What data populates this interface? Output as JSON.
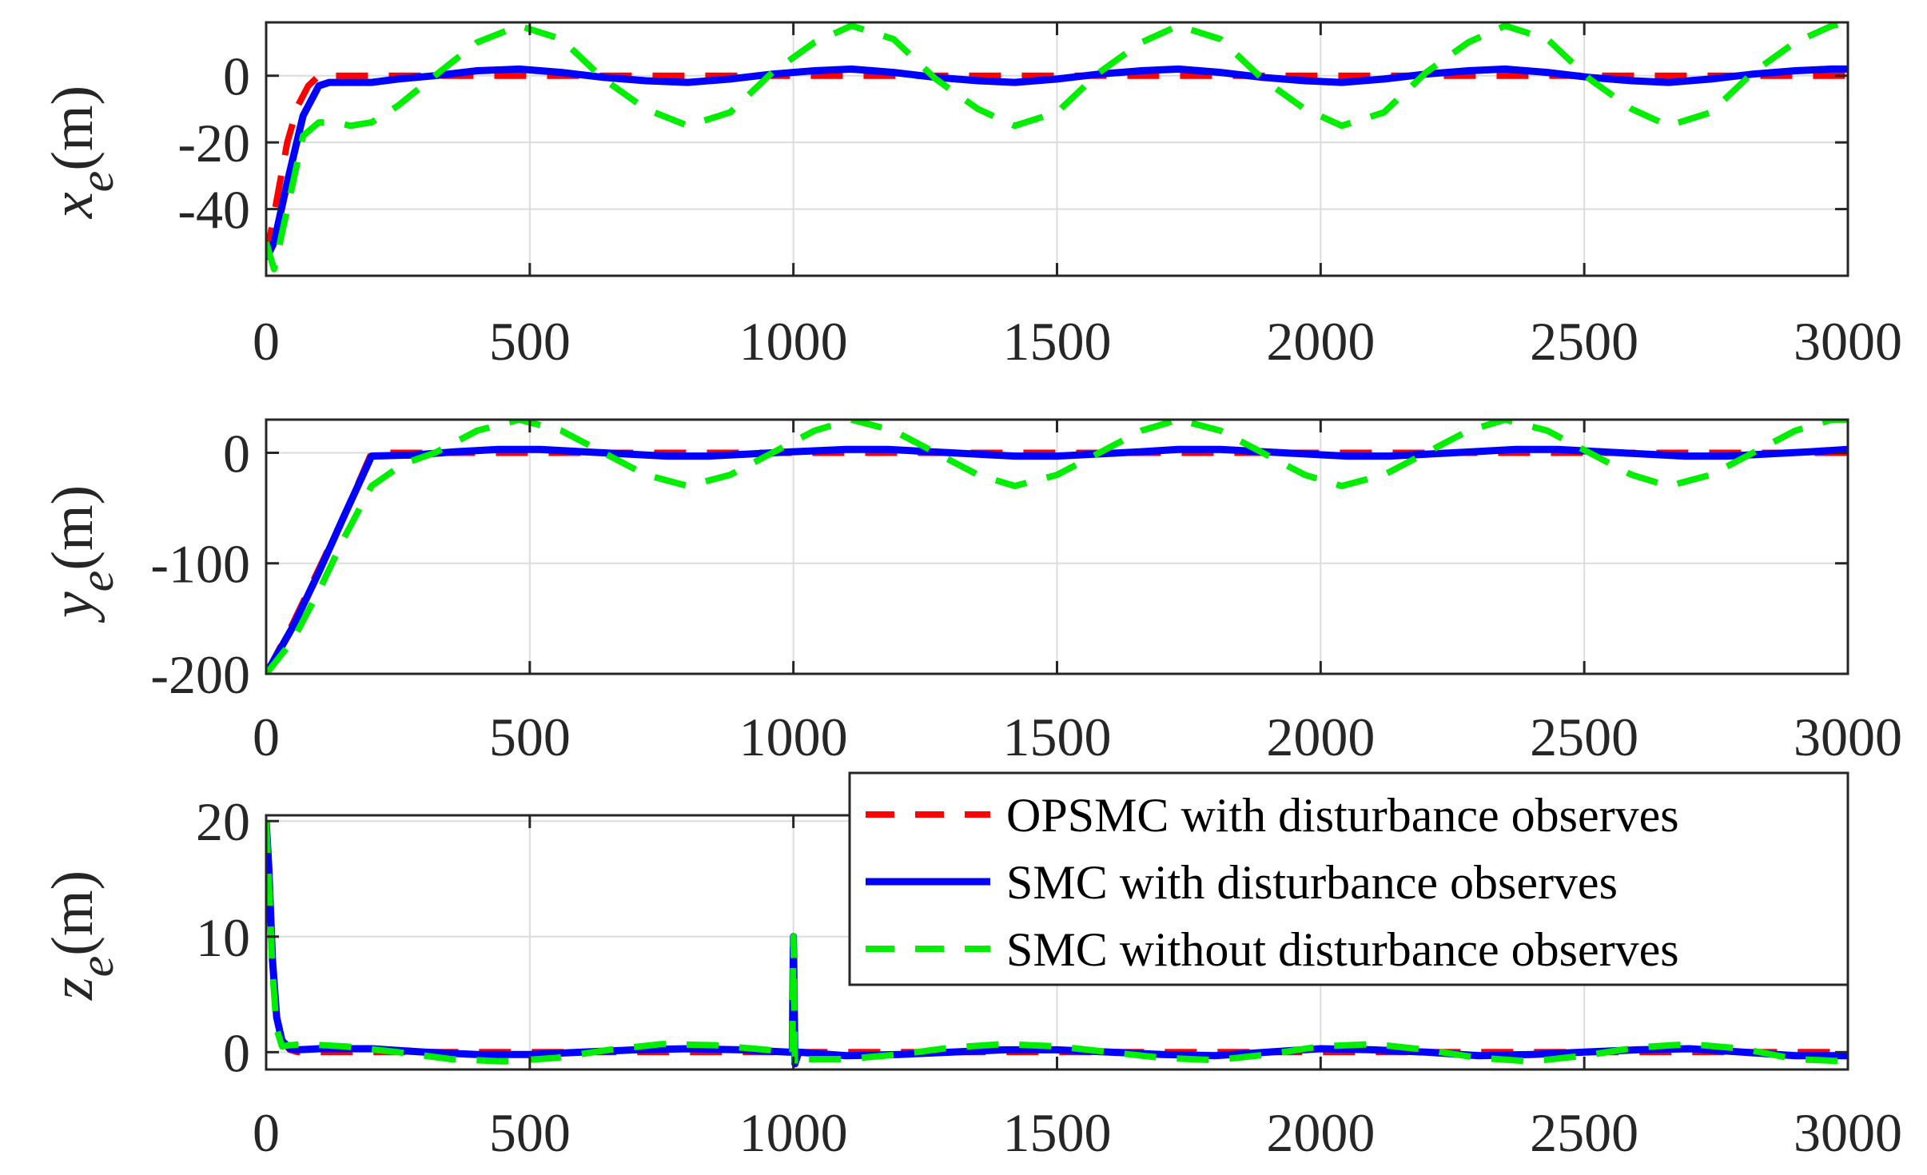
{
  "colors": {
    "opsmc": "#ff0000",
    "smc": "#0000ff",
    "smc_no_obs": "#00ee00",
    "axis": "#262626",
    "grid": "#dcdcdc"
  },
  "chart_data": [
    {
      "type": "line",
      "ylabel_main": "x",
      "ylabel_sub": "e",
      "ylabel_unit": "(m)",
      "xlim": [
        0,
        3000
      ],
      "ylim": [
        -60,
        16
      ],
      "xticks": [
        0,
        500,
        1000,
        1500,
        2000,
        2500,
        3000
      ],
      "xtick_labels": [
        "0",
        "500",
        "1000",
        "1500",
        "2000",
        "2500",
        "3000"
      ],
      "yticks": [
        0,
        -20,
        -40
      ],
      "ytick_labels": [
        "0",
        "-20",
        "-40"
      ],
      "grid": true,
      "series": [
        {
          "name": "OPSMC with disturbance observes",
          "style": "dashed",
          "color_key": "opsmc",
          "x": [
            0,
            10,
            25,
            40,
            60,
            80,
            100,
            3000
          ],
          "y": [
            -55,
            -46,
            -33,
            -20,
            -9,
            -3,
            0,
            0
          ]
        },
        {
          "name": "SMC with disturbance observes",
          "style": "solid",
          "color_key": "smc",
          "x": [
            0,
            15,
            40,
            70,
            100,
            120,
            150,
            200,
            250,
            320,
            400,
            480,
            560,
            640,
            720,
            800,
            880,
            960,
            1040,
            1110,
            1190,
            1270,
            1350,
            1420,
            1500,
            1580,
            1660,
            1730,
            1810,
            1890,
            1970,
            2040,
            2120,
            2200,
            2280,
            2350,
            2430,
            2510,
            2590,
            2660,
            2740,
            2820,
            2900,
            2970,
            3000
          ],
          "y": [
            -55,
            -50,
            -32,
            -12,
            -3,
            -2,
            -2,
            -2,
            -1,
            0,
            1.5,
            2,
            1,
            -0.5,
            -1.5,
            -2,
            -1,
            0.5,
            1.5,
            2,
            1,
            -0.5,
            -1.5,
            -2,
            -1,
            0.5,
            1.5,
            2,
            1,
            -0.5,
            -1.5,
            -2,
            -1,
            0.5,
            1.5,
            2,
            1,
            -0.5,
            -1.5,
            -2,
            -1,
            0.5,
            1.5,
            2,
            2
          ]
        },
        {
          "name": "SMC without disturbance observes",
          "style": "dashed",
          "color_key": "smc_no_obs",
          "x": [
            0,
            15,
            40,
            70,
            100,
            130,
            160,
            200,
            250,
            320,
            400,
            480,
            560,
            640,
            720,
            800,
            880,
            960,
            1040,
            1110,
            1190,
            1270,
            1350,
            1420,
            1500,
            1580,
            1660,
            1730,
            1810,
            1890,
            1970,
            2040,
            2120,
            2200,
            2280,
            2350,
            2430,
            2510,
            2590,
            2660,
            2740,
            2820,
            2900,
            2970,
            3000
          ],
          "y": [
            -50,
            -58,
            -40,
            -18,
            -14,
            -14,
            -15,
            -14,
            -9,
            0,
            10,
            15,
            11,
            -1,
            -10,
            -15,
            -11,
            1,
            10,
            15,
            11,
            -1,
            -10,
            -15,
            -11,
            1,
            10,
            15,
            11,
            -1,
            -10,
            -15,
            -11,
            1,
            10,
            15,
            11,
            -1,
            -10,
            -15,
            -11,
            1,
            10,
            15,
            16
          ]
        }
      ]
    },
    {
      "type": "line",
      "ylabel_main": "y",
      "ylabel_sub": "e",
      "ylabel_unit": "(m)",
      "xlim": [
        0,
        3000
      ],
      "ylim": [
        -200,
        30
      ],
      "xticks": [
        0,
        500,
        1000,
        1500,
        2000,
        2500,
        3000
      ],
      "xtick_labels": [
        "0",
        "500",
        "1000",
        "1500",
        "2000",
        "2500",
        "3000"
      ],
      "yticks": [
        0,
        -100,
        -200
      ],
      "ytick_labels": [
        "0",
        "-100",
        "-200"
      ],
      "grid": true,
      "series": [
        {
          "name": "OPSMC with disturbance observes",
          "style": "dashed",
          "color_key": "opsmc",
          "x": [
            0,
            50,
            100,
            150,
            200,
            3000
          ],
          "y": [
            -200,
            -155,
            -105,
            -55,
            0,
            0
          ]
        },
        {
          "name": "SMC with disturbance observes",
          "style": "solid",
          "color_key": "smc",
          "x": [
            0,
            50,
            100,
            150,
            200,
            280,
            360,
            440,
            520,
            600,
            680,
            760,
            840,
            920,
            1000,
            1100,
            1180,
            1260,
            1340,
            1420,
            1500,
            1580,
            1660,
            1730,
            1810,
            1890,
            1970,
            2050,
            2130,
            2210,
            2290,
            2370,
            2450,
            2530,
            2610,
            2690,
            2770,
            2850,
            2930,
            3000
          ],
          "y": [
            -200,
            -158,
            -108,
            -55,
            -3,
            -2,
            1,
            3,
            3,
            1,
            -1,
            -3,
            -3,
            -1,
            1,
            3,
            3,
            1,
            -1,
            -3,
            -3,
            -1,
            1,
            3,
            3,
            1,
            -1,
            -3,
            -3,
            -1,
            1,
            3,
            3,
            1,
            -1,
            -3,
            -3,
            -1,
            1,
            3
          ]
        },
        {
          "name": "SMC without disturbance observes",
          "style": "dashed",
          "color_key": "smc_no_obs",
          "x": [
            0,
            50,
            100,
            150,
            200,
            260,
            320,
            400,
            480,
            560,
            640,
            720,
            800,
            880,
            960,
            1040,
            1110,
            1190,
            1270,
            1350,
            1420,
            1500,
            1580,
            1660,
            1730,
            1810,
            1890,
            1970,
            2040,
            2120,
            2200,
            2280,
            2350,
            2430,
            2510,
            2590,
            2660,
            2740,
            2820,
            2900,
            2970,
            3000
          ],
          "y": [
            -200,
            -170,
            -125,
            -75,
            -30,
            -10,
            0,
            20,
            30,
            20,
            0,
            -20,
            -30,
            -20,
            0,
            20,
            30,
            20,
            0,
            -20,
            -30,
            -20,
            0,
            20,
            30,
            20,
            0,
            -20,
            -30,
            -20,
            0,
            20,
            30,
            20,
            0,
            -20,
            -30,
            -20,
            0,
            20,
            30,
            30
          ]
        }
      ]
    },
    {
      "type": "line",
      "ylabel_main": "z",
      "ylabel_sub": "e",
      "ylabel_unit": "(m)",
      "xlim": [
        0,
        3000
      ],
      "ylim": [
        -1.5,
        20.5
      ],
      "xticks": [
        0,
        500,
        1000,
        1500,
        2000,
        2500,
        3000
      ],
      "xtick_labels": [
        "0",
        "500",
        "1000",
        "1500",
        "2000",
        "2500",
        "3000"
      ],
      "yticks": [
        20,
        10,
        0
      ],
      "ytick_labels": [
        "20",
        "10",
        "0"
      ],
      "grid": true,
      "series": [
        {
          "name": "OPSMC with disturbance observes",
          "style": "dashed",
          "color_key": "opsmc",
          "x": [
            0,
            5,
            12,
            20,
            30,
            45,
            60,
            3000
          ],
          "y": [
            20,
            16,
            8,
            3,
            1,
            0.2,
            0,
            0
          ]
        },
        {
          "name": "SMC with disturbance observes",
          "style": "solid",
          "color_key": "smc",
          "x": [
            0,
            5,
            12,
            20,
            30,
            45,
            60,
            100,
            200,
            300,
            400,
            500,
            600,
            700,
            800,
            900,
            990,
            998,
            1000,
            1003,
            1010,
            1100,
            1200,
            1300,
            1400,
            1500,
            1600,
            1700,
            1800,
            1900,
            2000,
            2100,
            2200,
            2300,
            2400,
            2500,
            2600,
            2700,
            2800,
            2900,
            3000
          ],
          "y": [
            20,
            16,
            8,
            3,
            1,
            0.3,
            0.2,
            0.3,
            0.3,
            0,
            -0.2,
            -0.2,
            0,
            0.2,
            0.3,
            0.2,
            0,
            0,
            10,
            -1,
            0,
            -0.3,
            -0.2,
            0,
            0.2,
            0.2,
            0,
            -0.2,
            -0.3,
            0,
            0.3,
            0.2,
            0,
            -0.3,
            -0.2,
            0,
            0.2,
            0.3,
            0,
            -0.3,
            -0.3
          ]
        },
        {
          "name": "SMC without disturbance observes",
          "style": "dashed",
          "color_key": "smc_no_obs",
          "x": [
            0,
            5,
            12,
            20,
            30,
            45,
            70,
            150,
            250,
            350,
            450,
            550,
            650,
            750,
            850,
            950,
            990,
            998,
            1000,
            1003,
            1010,
            1100,
            1200,
            1300,
            1400,
            1500,
            1600,
            1700,
            1800,
            1900,
            2000,
            2100,
            2200,
            2300,
            2400,
            2500,
            2600,
            2700,
            2800,
            2900,
            3000
          ],
          "y": [
            20,
            15,
            7,
            2,
            0.5,
            0.6,
            0.7,
            0.5,
            0,
            -0.6,
            -0.8,
            -0.5,
            0.2,
            0.7,
            0.6,
            0.2,
            0,
            0,
            10,
            -1.2,
            -0.6,
            -0.6,
            -0.2,
            0.4,
            0.7,
            0.5,
            0,
            -0.5,
            -0.7,
            -0.2,
            0.5,
            0.7,
            0.2,
            -0.5,
            -0.8,
            -0.3,
            0.4,
            0.7,
            0.3,
            -0.6,
            -0.8
          ]
        }
      ]
    }
  ],
  "legend": {
    "placement": "upper-right of bottom panel",
    "entries": [
      {
        "label": "OPSMC with disturbance observes",
        "color_key": "opsmc",
        "style": "dashed"
      },
      {
        "label": "SMC with disturbance observes",
        "color_key": "smc",
        "style": "solid"
      },
      {
        "label": "SMC without disturbance observes",
        "color_key": "smc_no_obs",
        "style": "dashed"
      }
    ]
  }
}
